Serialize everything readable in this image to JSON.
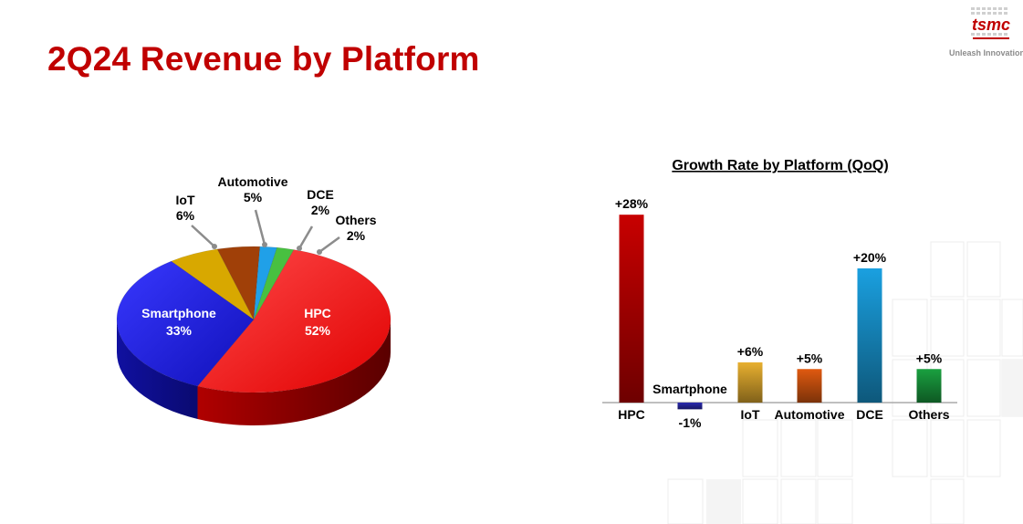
{
  "slide": {
    "title": "2Q24 Revenue by Platform",
    "logo_text": "tsmc",
    "tagline": "Unleash Innovation"
  },
  "chart_data": [
    {
      "type": "pie",
      "title": "",
      "categories": [
        "HPC",
        "Smartphone",
        "IoT",
        "Automotive",
        "DCE",
        "Others"
      ],
      "values": [
        52,
        33,
        6,
        5,
        2,
        2
      ],
      "labels": [
        "52%",
        "33%",
        "6%",
        "5%",
        "2%",
        "2%"
      ],
      "colors": [
        "#e00000",
        "#1818c8",
        "#d8a800",
        "#a04008",
        "#20a0e8",
        "#48c040"
      ],
      "style": "3d-tilted"
    },
    {
      "type": "bar",
      "title": "Growth Rate by Platform (QoQ)",
      "categories": [
        "HPC",
        "Smartphone",
        "IoT",
        "Automotive",
        "DCE",
        "Others"
      ],
      "values": [
        28,
        -1,
        6,
        5,
        20,
        5
      ],
      "labels": [
        "+28%",
        "-1%",
        "+6%",
        "+5%",
        "+20%",
        "+5%"
      ],
      "colors": [
        "#c80000",
        "#2a2ab0",
        "#e8b030",
        "#e05a10",
        "#1aa0e0",
        "#1aa040"
      ],
      "xlabel": "",
      "ylabel": "",
      "ylim": [
        -1,
        28
      ],
      "grid": false,
      "legend": "none"
    }
  ]
}
